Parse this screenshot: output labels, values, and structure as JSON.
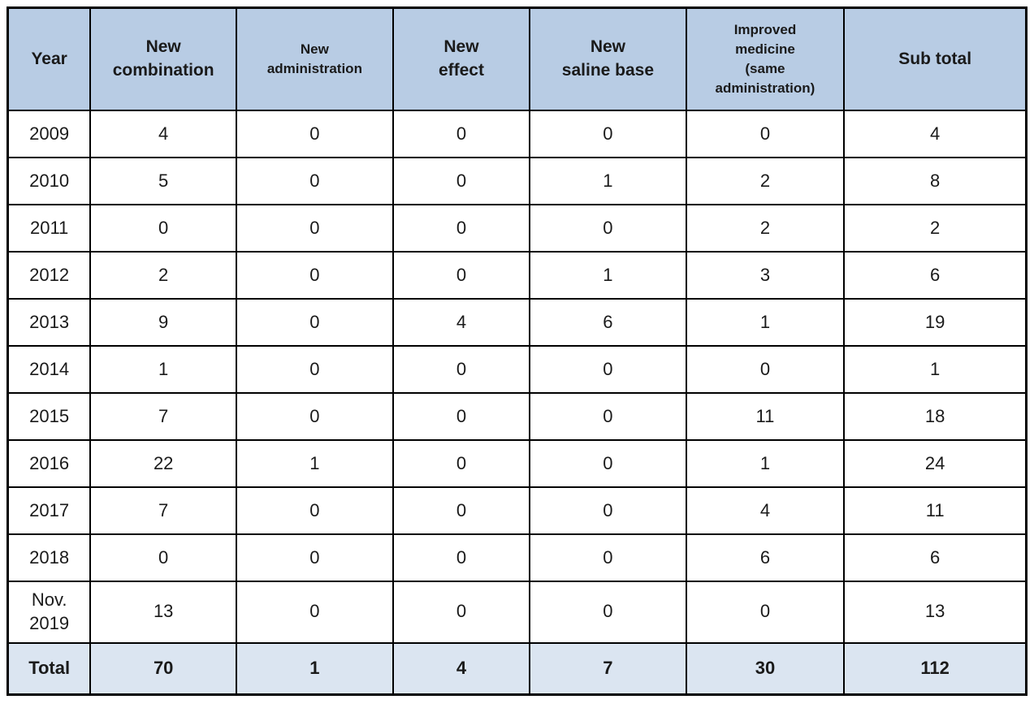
{
  "colors": {
    "header_bg": "#b8cce4",
    "total_bg": "#dbe5f1",
    "border": "#000000",
    "text": "#1a1a1a"
  },
  "table": {
    "columns": [
      {
        "label": "Year",
        "size": "normal"
      },
      {
        "label": "New\ncombination",
        "size": "normal"
      },
      {
        "label": "New\nadministration",
        "size": "small"
      },
      {
        "label": "New\neffect",
        "size": "normal"
      },
      {
        "label": "New\nsaline base",
        "size": "normal"
      },
      {
        "label": "Improved\nmedicine\n(same\nadministration)",
        "size": "small"
      },
      {
        "label": "Sub total",
        "size": "normal"
      }
    ],
    "rows": [
      {
        "year": "2009",
        "cells": [
          "4",
          "0",
          "0",
          "0",
          "0",
          "4"
        ]
      },
      {
        "year": "2010",
        "cells": [
          "5",
          "0",
          "0",
          "1",
          "2",
          "8"
        ]
      },
      {
        "year": "2011",
        "cells": [
          "0",
          "0",
          "0",
          "0",
          "2",
          "2"
        ]
      },
      {
        "year": "2012",
        "cells": [
          "2",
          "0",
          "0",
          "1",
          "3",
          "6"
        ]
      },
      {
        "year": "2013",
        "cells": [
          "9",
          "0",
          "4",
          "6",
          "1",
          "19"
        ]
      },
      {
        "year": "2014",
        "cells": [
          "1",
          "0",
          "0",
          "0",
          "0",
          "1"
        ]
      },
      {
        "year": "2015",
        "cells": [
          "7",
          "0",
          "0",
          "0",
          "11",
          "18"
        ]
      },
      {
        "year": "2016",
        "cells": [
          "22",
          "1",
          "0",
          "0",
          "1",
          "24"
        ]
      },
      {
        "year": "2017",
        "cells": [
          "7",
          "0",
          "0",
          "0",
          "4",
          "11"
        ]
      },
      {
        "year": "2018",
        "cells": [
          "0",
          "0",
          "0",
          "0",
          "6",
          "6"
        ]
      },
      {
        "year": "Nov.\n2019",
        "cells": [
          "13",
          "0",
          "0",
          "0",
          "0",
          "13"
        ],
        "tall": true
      }
    ],
    "total_row": {
      "label": "Total",
      "cells": [
        "70",
        "1",
        "4",
        "7",
        "30",
        "112"
      ]
    }
  },
  "chart_data": {
    "type": "table",
    "title": "",
    "columns": [
      "Year",
      "New combination",
      "New administration",
      "New effect",
      "New saline base",
      "Improved medicine (same administration)",
      "Sub total"
    ],
    "categories": [
      "2009",
      "2010",
      "2011",
      "2012",
      "2013",
      "2014",
      "2015",
      "2016",
      "2017",
      "2018",
      "Nov. 2019",
      "Total"
    ],
    "series": [
      {
        "name": "New combination",
        "values": [
          4,
          5,
          0,
          2,
          9,
          1,
          7,
          22,
          7,
          0,
          13,
          70
        ]
      },
      {
        "name": "New administration",
        "values": [
          0,
          0,
          0,
          0,
          0,
          0,
          0,
          1,
          0,
          0,
          0,
          1
        ]
      },
      {
        "name": "New effect",
        "values": [
          0,
          0,
          0,
          0,
          4,
          0,
          0,
          0,
          0,
          0,
          0,
          4
        ]
      },
      {
        "name": "New saline base",
        "values": [
          0,
          1,
          0,
          1,
          6,
          0,
          0,
          0,
          0,
          0,
          0,
          7
        ]
      },
      {
        "name": "Improved medicine (same administration)",
        "values": [
          0,
          2,
          2,
          3,
          1,
          0,
          11,
          1,
          4,
          6,
          0,
          30
        ]
      },
      {
        "name": "Sub total",
        "values": [
          4,
          8,
          2,
          6,
          19,
          1,
          18,
          24,
          11,
          6,
          13,
          112
        ]
      }
    ]
  }
}
